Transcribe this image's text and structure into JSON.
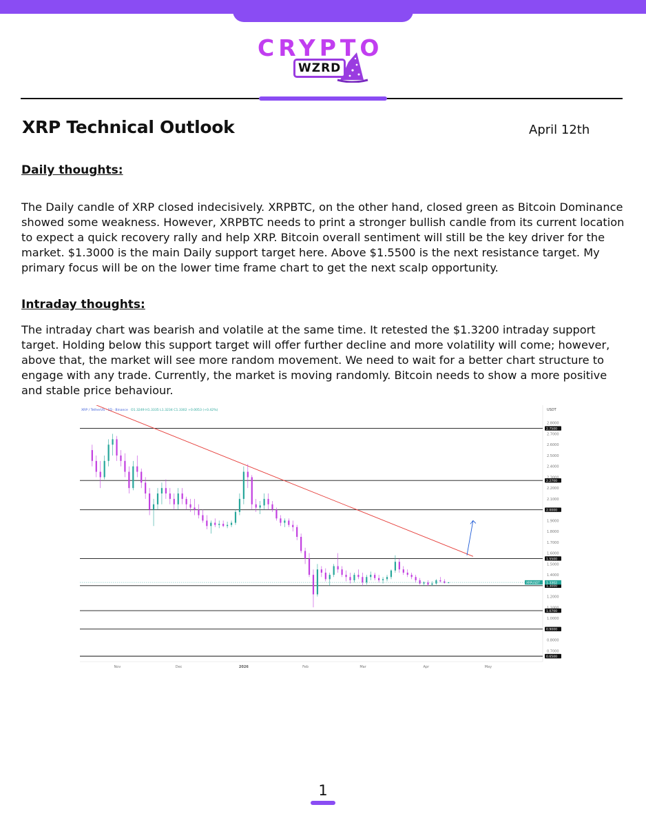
{
  "brand": {
    "name": "CRYPTO",
    "sub": "WZRD"
  },
  "header": {
    "title": "XRP Technical Outlook",
    "date": "April 12th"
  },
  "sections": {
    "daily": {
      "heading": "Daily thoughts:",
      "body": "The Daily candle of XRP closed indecisively. XRPBTC, on the other hand, closed green as Bitcoin Dominance showed some weakness. However, XRPBTC needs to print a stronger bullish candle from its current location to expect a quick recovery rally and help XRP. Bitcoin overall sentiment will still be the key driver for the market. $1.3000 is the main Daily support target here. Above $1.5500 is the next resistance target. My primary focus will be on the lower time frame chart to get the next scalp opportunity."
    },
    "intraday": {
      "heading": "Intraday thoughts:",
      "body": "The intraday chart was bearish and volatile at the same time. It retested the $1.3200 intraday support target. Holding below this support target will offer further decline and more volatility will come; however, above that, the market will see more random movement. We need to wait for a better chart structure to engage with any trade. Currently, the market is moving randomly. Bitcoin needs to show a more positive and stable price behaviour."
    }
  },
  "chart_data": {
    "type": "candlestick",
    "title": "XRP / TetherUS · 1D · Binance",
    "ohlc_readout": "O1.3249 H1.3335 L1.3234 C1.3302 +0.0053 (+0.42%)",
    "currency_label": "USDT",
    "ylim": [
      0.6,
      2.9
    ],
    "y_ticks": [
      "2.8000",
      "2.7000",
      "2.6000",
      "2.5000",
      "2.4000",
      "2.3000",
      "2.2000",
      "2.1000",
      "2.0000",
      "1.9000",
      "1.8000",
      "1.7000",
      "1.6000",
      "1.5000",
      "1.4000",
      "1.3000",
      "1.2000",
      "1.1000",
      "1.0000",
      "0.9000",
      "0.8000",
      "0.7000"
    ],
    "x_ticks": [
      "Nov",
      "Dec",
      "2026",
      "Feb",
      "Mar",
      "Apr",
      "May"
    ],
    "levels": [
      {
        "value": 2.75,
        "label": "2.7500"
      },
      {
        "value": 2.27,
        "label": "2.2700"
      },
      {
        "value": 2.0,
        "label": "2.0000"
      },
      {
        "value": 1.55,
        "label": "1.5500"
      },
      {
        "value": 1.3,
        "label": "1.3000"
      },
      {
        "value": 1.07,
        "label": "1.0700"
      },
      {
        "value": 0.9,
        "label": "0.9000"
      },
      {
        "value": 0.65,
        "label": "0.6500"
      }
    ],
    "last_price": {
      "value": 1.3302,
      "symbol": "XRPUSDT",
      "label": "1.3302"
    },
    "trendline": {
      "from": {
        "date": "2025-10-20",
        "value": 2.98
      },
      "to": {
        "date": "2026-04-24",
        "value": 1.57
      }
    },
    "projection_arrow": {
      "from": {
        "date": "2026-04-21",
        "value": 1.58
      },
      "to": {
        "date": "2026-04-24",
        "value": 1.9
      }
    },
    "series": [
      {
        "date": "2025-10-20",
        "open": 2.55,
        "high": 2.6,
        "low": 2.4,
        "close": 2.45
      },
      {
        "date": "2025-10-22",
        "open": 2.45,
        "high": 2.5,
        "low": 2.3,
        "close": 2.35
      },
      {
        "date": "2025-10-24",
        "open": 2.35,
        "high": 2.45,
        "low": 2.2,
        "close": 2.3
      },
      {
        "date": "2025-10-26",
        "open": 2.3,
        "high": 2.5,
        "low": 2.28,
        "close": 2.45
      },
      {
        "date": "2025-10-28",
        "open": 2.45,
        "high": 2.65,
        "low": 2.4,
        "close": 2.6
      },
      {
        "date": "2025-10-30",
        "open": 2.6,
        "high": 2.7,
        "low": 2.5,
        "close": 2.65
      },
      {
        "date": "2025-11-01",
        "open": 2.65,
        "high": 2.68,
        "low": 2.45,
        "close": 2.5
      },
      {
        "date": "2025-11-03",
        "open": 2.5,
        "high": 2.55,
        "low": 2.4,
        "close": 2.45
      },
      {
        "date": "2025-11-05",
        "open": 2.45,
        "high": 2.52,
        "low": 2.3,
        "close": 2.35
      },
      {
        "date": "2025-11-07",
        "open": 2.35,
        "high": 2.4,
        "low": 2.15,
        "close": 2.2
      },
      {
        "date": "2025-11-09",
        "open": 2.2,
        "high": 2.45,
        "low": 2.18,
        "close": 2.4
      },
      {
        "date": "2025-11-11",
        "open": 2.4,
        "high": 2.5,
        "low": 2.3,
        "close": 2.35
      },
      {
        "date": "2025-11-13",
        "open": 2.35,
        "high": 2.38,
        "low": 2.2,
        "close": 2.25
      },
      {
        "date": "2025-11-15",
        "open": 2.25,
        "high": 2.3,
        "low": 2.1,
        "close": 2.15
      },
      {
        "date": "2025-11-17",
        "open": 2.15,
        "high": 2.2,
        "low": 1.95,
        "close": 2.0
      },
      {
        "date": "2025-11-19",
        "open": 2.0,
        "high": 2.1,
        "low": 1.85,
        "close": 2.05
      },
      {
        "date": "2025-11-21",
        "open": 2.05,
        "high": 2.2,
        "low": 2.0,
        "close": 2.15
      },
      {
        "date": "2025-11-23",
        "open": 2.15,
        "high": 2.25,
        "low": 2.05,
        "close": 2.2
      },
      {
        "date": "2025-11-25",
        "open": 2.2,
        "high": 2.28,
        "low": 2.1,
        "close": 2.15
      },
      {
        "date": "2025-11-27",
        "open": 2.15,
        "high": 2.2,
        "low": 2.05,
        "close": 2.1
      },
      {
        "date": "2025-11-29",
        "open": 2.1,
        "high": 2.15,
        "low": 2.0,
        "close": 2.05
      },
      {
        "date": "2025-12-01",
        "open": 2.05,
        "high": 2.2,
        "low": 2.0,
        "close": 2.15
      },
      {
        "date": "2025-12-03",
        "open": 2.15,
        "high": 2.2,
        "low": 2.05,
        "close": 2.1
      },
      {
        "date": "2025-12-05",
        "open": 2.1,
        "high": 2.12,
        "low": 2.0,
        "close": 2.05
      },
      {
        "date": "2025-12-07",
        "open": 2.05,
        "high": 2.1,
        "low": 1.98,
        "close": 2.02
      },
      {
        "date": "2025-12-09",
        "open": 2.02,
        "high": 2.1,
        "low": 1.95,
        "close": 2.0
      },
      {
        "date": "2025-12-11",
        "open": 2.0,
        "high": 2.05,
        "low": 1.92,
        "close": 1.95
      },
      {
        "date": "2025-12-13",
        "open": 1.95,
        "high": 2.0,
        "low": 1.88,
        "close": 1.9
      },
      {
        "date": "2025-12-15",
        "open": 1.9,
        "high": 1.95,
        "low": 1.82,
        "close": 1.85
      },
      {
        "date": "2025-12-17",
        "open": 1.85,
        "high": 1.9,
        "low": 1.78,
        "close": 1.88
      },
      {
        "date": "2025-12-19",
        "open": 1.88,
        "high": 1.92,
        "low": 1.84,
        "close": 1.86
      },
      {
        "date": "2025-12-21",
        "open": 1.86,
        "high": 1.9,
        "low": 1.83,
        "close": 1.87
      },
      {
        "date": "2025-12-23",
        "open": 1.87,
        "high": 1.9,
        "low": 1.84,
        "close": 1.85
      },
      {
        "date": "2025-12-25",
        "open": 1.85,
        "high": 1.89,
        "low": 1.83,
        "close": 1.86
      },
      {
        "date": "2025-12-27",
        "open": 1.86,
        "high": 1.9,
        "low": 1.84,
        "close": 1.88
      },
      {
        "date": "2025-12-29",
        "open": 1.88,
        "high": 2.0,
        "low": 1.86,
        "close": 1.98
      },
      {
        "date": "2025-12-31",
        "open": 1.98,
        "high": 2.15,
        "low": 1.95,
        "close": 2.1
      },
      {
        "date": "2026-01-02",
        "open": 2.1,
        "high": 2.4,
        "low": 2.05,
        "close": 2.35
      },
      {
        "date": "2026-01-04",
        "open": 2.35,
        "high": 2.42,
        "low": 2.2,
        "close": 2.3
      },
      {
        "date": "2026-01-06",
        "open": 2.3,
        "high": 2.32,
        "low": 2.0,
        "close": 2.05
      },
      {
        "date": "2026-01-08",
        "open": 2.05,
        "high": 2.1,
        "low": 1.98,
        "close": 2.02
      },
      {
        "date": "2026-01-10",
        "open": 2.02,
        "high": 2.08,
        "low": 1.96,
        "close": 2.04
      },
      {
        "date": "2026-01-12",
        "open": 2.04,
        "high": 2.15,
        "low": 2.0,
        "close": 2.1
      },
      {
        "date": "2026-01-14",
        "open": 2.1,
        "high": 2.15,
        "low": 2.0,
        "close": 2.05
      },
      {
        "date": "2026-01-16",
        "open": 2.05,
        "high": 2.08,
        "low": 1.98,
        "close": 2.0
      },
      {
        "date": "2026-01-18",
        "open": 2.0,
        "high": 2.02,
        "low": 1.9,
        "close": 1.92
      },
      {
        "date": "2026-01-20",
        "open": 1.92,
        "high": 1.95,
        "low": 1.85,
        "close": 1.88
      },
      {
        "date": "2026-01-22",
        "open": 1.88,
        "high": 1.92,
        "low": 1.84,
        "close": 1.9
      },
      {
        "date": "2026-01-24",
        "open": 1.9,
        "high": 1.92,
        "low": 1.84,
        "close": 1.86
      },
      {
        "date": "2026-01-26",
        "open": 1.86,
        "high": 1.9,
        "low": 1.8,
        "close": 1.84
      },
      {
        "date": "2026-01-28",
        "open": 1.84,
        "high": 1.86,
        "low": 1.72,
        "close": 1.75
      },
      {
        "date": "2026-01-30",
        "open": 1.75,
        "high": 1.78,
        "low": 1.6,
        "close": 1.62
      },
      {
        "date": "2026-02-01",
        "open": 1.62,
        "high": 1.65,
        "low": 1.5,
        "close": 1.55
      },
      {
        "date": "2026-02-03",
        "open": 1.55,
        "high": 1.6,
        "low": 1.38,
        "close": 1.4
      },
      {
        "date": "2026-02-05",
        "open": 1.4,
        "high": 1.45,
        "low": 1.1,
        "close": 1.22
      },
      {
        "date": "2026-02-07",
        "open": 1.22,
        "high": 1.5,
        "low": 1.2,
        "close": 1.45
      },
      {
        "date": "2026-02-09",
        "open": 1.45,
        "high": 1.48,
        "low": 1.38,
        "close": 1.42
      },
      {
        "date": "2026-02-11",
        "open": 1.42,
        "high": 1.46,
        "low": 1.34,
        "close": 1.36
      },
      {
        "date": "2026-02-13",
        "open": 1.36,
        "high": 1.42,
        "low": 1.3,
        "close": 1.4
      },
      {
        "date": "2026-02-15",
        "open": 1.4,
        "high": 1.5,
        "low": 1.38,
        "close": 1.48
      },
      {
        "date": "2026-02-17",
        "open": 1.48,
        "high": 1.6,
        "low": 1.42,
        "close": 1.45
      },
      {
        "date": "2026-02-19",
        "open": 1.45,
        "high": 1.48,
        "low": 1.38,
        "close": 1.4
      },
      {
        "date": "2026-02-21",
        "open": 1.4,
        "high": 1.44,
        "low": 1.34,
        "close": 1.38
      },
      {
        "date": "2026-02-23",
        "open": 1.38,
        "high": 1.42,
        "low": 1.32,
        "close": 1.35
      },
      {
        "date": "2026-02-25",
        "open": 1.35,
        "high": 1.42,
        "low": 1.33,
        "close": 1.4
      },
      {
        "date": "2026-02-27",
        "open": 1.4,
        "high": 1.45,
        "low": 1.36,
        "close": 1.38
      },
      {
        "date": "2026-03-01",
        "open": 1.38,
        "high": 1.42,
        "low": 1.3,
        "close": 1.33
      },
      {
        "date": "2026-03-03",
        "open": 1.33,
        "high": 1.4,
        "low": 1.31,
        "close": 1.38
      },
      {
        "date": "2026-03-05",
        "open": 1.38,
        "high": 1.43,
        "low": 1.35,
        "close": 1.4
      },
      {
        "date": "2026-03-07",
        "open": 1.4,
        "high": 1.42,
        "low": 1.35,
        "close": 1.37
      },
      {
        "date": "2026-03-09",
        "open": 1.37,
        "high": 1.4,
        "low": 1.33,
        "close": 1.35
      },
      {
        "date": "2026-03-11",
        "open": 1.35,
        "high": 1.38,
        "low": 1.32,
        "close": 1.36
      },
      {
        "date": "2026-03-13",
        "open": 1.36,
        "high": 1.4,
        "low": 1.34,
        "close": 1.38
      },
      {
        "date": "2026-03-15",
        "open": 1.38,
        "high": 1.45,
        "low": 1.36,
        "close": 1.44
      },
      {
        "date": "2026-03-17",
        "open": 1.44,
        "high": 1.58,
        "low": 1.42,
        "close": 1.52
      },
      {
        "date": "2026-03-19",
        "open": 1.52,
        "high": 1.55,
        "low": 1.42,
        "close": 1.45
      },
      {
        "date": "2026-03-21",
        "open": 1.45,
        "high": 1.48,
        "low": 1.4,
        "close": 1.42
      },
      {
        "date": "2026-03-23",
        "open": 1.42,
        "high": 1.45,
        "low": 1.38,
        "close": 1.4
      },
      {
        "date": "2026-03-25",
        "open": 1.4,
        "high": 1.42,
        "low": 1.36,
        "close": 1.38
      },
      {
        "date": "2026-03-27",
        "open": 1.38,
        "high": 1.4,
        "low": 1.33,
        "close": 1.35
      },
      {
        "date": "2026-03-29",
        "open": 1.35,
        "high": 1.37,
        "low": 1.31,
        "close": 1.32
      },
      {
        "date": "2026-03-31",
        "open": 1.32,
        "high": 1.34,
        "low": 1.3,
        "close": 1.33
      },
      {
        "date": "2026-04-02",
        "open": 1.33,
        "high": 1.35,
        "low": 1.3,
        "close": 1.31
      },
      {
        "date": "2026-04-04",
        "open": 1.31,
        "high": 1.34,
        "low": 1.3,
        "close": 1.32
      },
      {
        "date": "2026-04-06",
        "open": 1.32,
        "high": 1.36,
        "low": 1.31,
        "close": 1.35
      },
      {
        "date": "2026-04-08",
        "open": 1.35,
        "high": 1.38,
        "low": 1.33,
        "close": 1.34
      },
      {
        "date": "2026-04-10",
        "open": 1.34,
        "high": 1.36,
        "low": 1.32,
        "close": 1.325
      },
      {
        "date": "2026-04-12",
        "open": 1.3249,
        "high": 1.3335,
        "low": 1.3234,
        "close": 1.3302
      }
    ],
    "colors": {
      "up": "#26a69a",
      "down": "#c23fe0",
      "trendline": "#e53935",
      "arrow": "#1e5bd6",
      "levels": "#111111"
    }
  },
  "footer": {
    "page_number": "1"
  }
}
